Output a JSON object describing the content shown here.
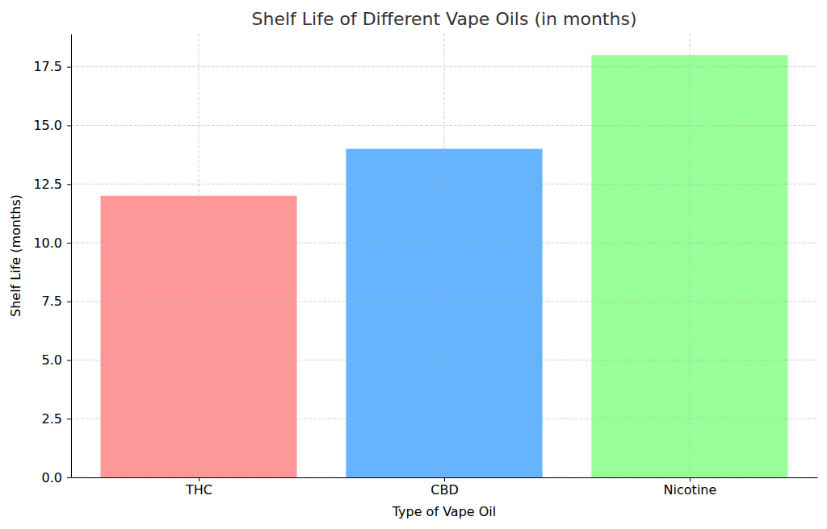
{
  "chart_data": {
    "type": "bar",
    "title": "Shelf Life of Different Vape Oils (in months)",
    "x_label": "Type of Vape Oil",
    "y_label": "Shelf Life (months)",
    "categories": [
      "THC",
      "CBD",
      "Nicotine"
    ],
    "values": [
      12,
      14,
      18
    ],
    "colors": [
      "#ff9999",
      "#66b3ff",
      "#99ff99"
    ],
    "ylim": [
      0,
      18.9
    ],
    "yticks": [
      {
        "value": 0,
        "label": "0.0"
      },
      2.5,
      {
        "value": 5,
        "label": "5.0"
      },
      7.5,
      {
        "value": 10,
        "label": "10.0"
      },
      12.5,
      {
        "value": 15,
        "label": "15.0"
      },
      17.5
    ],
    "grid": true
  }
}
